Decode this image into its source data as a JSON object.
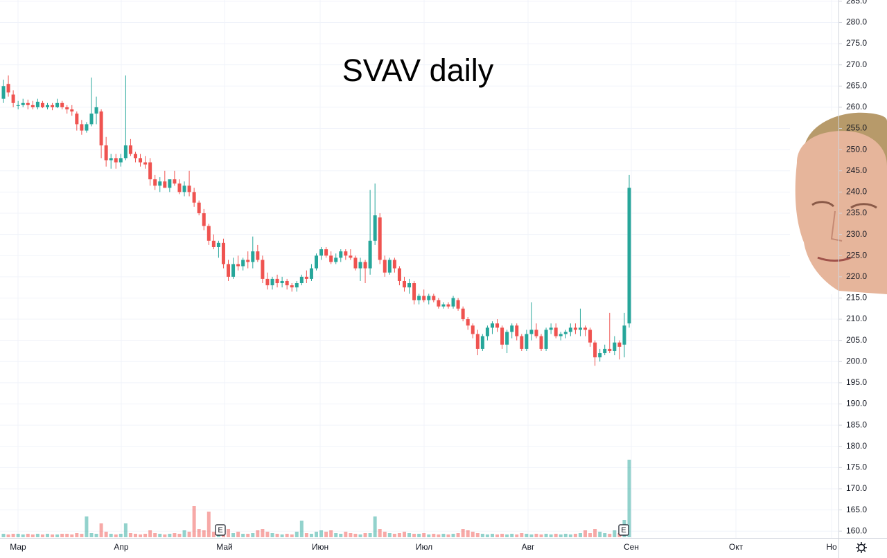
{
  "chart_data": {
    "type": "candlestick",
    "title": "SVAV daily",
    "months": [
      "Мар",
      "Апр",
      "Май",
      "Июн",
      "Июл",
      "Авг",
      "Сен",
      "Окт",
      "Но"
    ],
    "events": [
      {
        "label": "E"
      },
      {
        "label": "E"
      }
    ],
    "up_color": "#26a69a",
    "down_color": "#ef5350",
    "grid": true,
    "ylim": [
      158.4,
      285.3
    ],
    "yticks": [
      {
        "value": 160,
        "label": "160.0"
      },
      {
        "value": 165,
        "label": "165.0"
      },
      {
        "value": 170,
        "label": "170.0"
      },
      {
        "value": 175,
        "label": "175.0"
      },
      {
        "value": 180,
        "label": "180.0"
      },
      {
        "value": 185,
        "label": "185.0"
      },
      {
        "value": 190,
        "label": "190.0"
      },
      {
        "value": 195,
        "label": "195.0"
      },
      {
        "value": 200,
        "label": "200.0"
      },
      {
        "value": 205,
        "label": "205.0"
      },
      {
        "value": 210,
        "label": "210.0"
      },
      {
        "value": 215,
        "label": "215.0"
      },
      {
        "value": 220,
        "label": "220.0"
      },
      {
        "value": 225,
        "label": "225.0"
      },
      {
        "value": 230,
        "label": "230.0"
      },
      {
        "value": 235,
        "label": "235.0"
      },
      {
        "value": 240,
        "label": "240.0"
      },
      {
        "value": 245,
        "label": "245.0"
      },
      {
        "value": 250,
        "label": "250.0"
      },
      {
        "value": 255,
        "label": "255.0"
      },
      {
        "value": 260,
        "label": "260.0"
      },
      {
        "value": 265,
        "label": "265.0"
      },
      {
        "value": 270,
        "label": "270.0"
      },
      {
        "value": 275,
        "label": "275.0"
      },
      {
        "value": 280,
        "label": "280.0"
      },
      {
        "value": 285,
        "label": "285.0"
      }
    ],
    "candles": [
      [
        262,
        266.5,
        261,
        265
      ],
      [
        265.5,
        267.5,
        262.5,
        263.5
      ],
      [
        263,
        264,
        260,
        261
      ],
      [
        260.5,
        261.5,
        259.5,
        260.5
      ],
      [
        260.5,
        262,
        260,
        261
      ],
      [
        261,
        261.8,
        259.5,
        260.5
      ],
      [
        260.5,
        261.5,
        259.5,
        260
      ],
      [
        260,
        262,
        259.5,
        261.3
      ],
      [
        261,
        261.5,
        259.8,
        260
      ],
      [
        260,
        261,
        259.5,
        260.5
      ],
      [
        260.5,
        261,
        259.3,
        260
      ],
      [
        260,
        262,
        259.8,
        261
      ],
      [
        261,
        261.5,
        259.5,
        260
      ],
      [
        260,
        260.5,
        258.5,
        259.5
      ],
      [
        259.5,
        260.5,
        258,
        259
      ],
      [
        258.5,
        259,
        254.5,
        256
      ],
      [
        256,
        257,
        253.5,
        254.5
      ],
      [
        254.5,
        256.5,
        254,
        256
      ],
      [
        256,
        267,
        255.5,
        258.5
      ],
      [
        258.5,
        262.5,
        256,
        260
      ],
      [
        259,
        259.5,
        248,
        251
      ],
      [
        251,
        253,
        246,
        247.5
      ],
      [
        247.5,
        249,
        245.5,
        248
      ],
      [
        248,
        249,
        245.5,
        247
      ],
      [
        247,
        249,
        246,
        248
      ],
      [
        248,
        267.5,
        247.5,
        251
      ],
      [
        251,
        252.5,
        248.5,
        249
      ],
      [
        249,
        249.5,
        247,
        248
      ],
      [
        248,
        249,
        246,
        247
      ],
      [
        247,
        248.5,
        245.5,
        246.5
      ],
      [
        247,
        248,
        241.5,
        243
      ],
      [
        243,
        244,
        240.5,
        241.5
      ],
      [
        241.5,
        243.5,
        240,
        242.5
      ],
      [
        242.5,
        245,
        241,
        241
      ],
      [
        241,
        243,
        240,
        243
      ],
      [
        243,
        245,
        241.5,
        242
      ],
      [
        242,
        243,
        239.5,
        240
      ],
      [
        240,
        242.5,
        239,
        241.5
      ],
      [
        241.5,
        245,
        239,
        240
      ],
      [
        240,
        241,
        236.5,
        237.5
      ],
      [
        237.5,
        238,
        234.5,
        235
      ],
      [
        235,
        236,
        231,
        232
      ],
      [
        232,
        232.5,
        227.5,
        228.5
      ],
      [
        228.5,
        230,
        226.5,
        227
      ],
      [
        227,
        228.5,
        224.5,
        228
      ],
      [
        228,
        229,
        222,
        223
      ],
      [
        223,
        224,
        219,
        220
      ],
      [
        220,
        224.5,
        219.5,
        223
      ],
      [
        223,
        225,
        221.5,
        222.5
      ],
      [
        222.5,
        224.5,
        221.5,
        224
      ],
      [
        224,
        226,
        222,
        223.5
      ],
      [
        223.5,
        229.5,
        222,
        226
      ],
      [
        226,
        227.5,
        223.5,
        224
      ],
      [
        224,
        225,
        218.5,
        219.5
      ],
      [
        219.5,
        221,
        217,
        218
      ],
      [
        218,
        220,
        217,
        219.5
      ],
      [
        219.5,
        220.5,
        217.5,
        218.5
      ],
      [
        218.5,
        220,
        217.5,
        219
      ],
      [
        219,
        219.5,
        217,
        218
      ],
      [
        218,
        218.5,
        216.5,
        217.5
      ],
      [
        217.5,
        219,
        216.5,
        218.5
      ],
      [
        218.5,
        220.5,
        218,
        220
      ],
      [
        220,
        221.5,
        218.5,
        219.5
      ],
      [
        219.5,
        223,
        219,
        222
      ],
      [
        222,
        225.5,
        221.5,
        225
      ],
      [
        225,
        227,
        224,
        226.5
      ],
      [
        226.5,
        227,
        224.5,
        225
      ],
      [
        225,
        226,
        223,
        223.5
      ],
      [
        223.5,
        225.5,
        223,
        224.5
      ],
      [
        224.5,
        226.5,
        223.5,
        226
      ],
      [
        226,
        226.5,
        224,
        225
      ],
      [
        225,
        226.5,
        224,
        224.5
      ],
      [
        224.5,
        225,
        221.5,
        222
      ],
      [
        222,
        224.5,
        219,
        223.5
      ],
      [
        223.5,
        224,
        218.5,
        222
      ],
      [
        222,
        240.5,
        220.5,
        228.5
      ],
      [
        228.5,
        242,
        227.5,
        234.5
      ],
      [
        234,
        235,
        223,
        224
      ],
      [
        224,
        225,
        220,
        221
      ],
      [
        221,
        224.5,
        220.5,
        224
      ],
      [
        224,
        224.5,
        221,
        222
      ],
      [
        222,
        222.5,
        218,
        219
      ],
      [
        219,
        220,
        216.5,
        217.5
      ],
      [
        217.5,
        219.5,
        216,
        218.5
      ],
      [
        218.5,
        219,
        213.5,
        214.5
      ],
      [
        214.5,
        216,
        213.5,
        215.5
      ],
      [
        215.5,
        217,
        214,
        214.5
      ],
      [
        214.5,
        216,
        213.5,
        215.5
      ],
      [
        215.5,
        216,
        214,
        214.5
      ],
      [
        214.5,
        215,
        212.5,
        213
      ],
      [
        213,
        214,
        212.5,
        213.5
      ],
      [
        213.5,
        214,
        212.5,
        213
      ],
      [
        213,
        215.5,
        212.5,
        215
      ],
      [
        214.5,
        215,
        212,
        212.5
      ],
      [
        212.5,
        213,
        209.5,
        210
      ],
      [
        210,
        210.5,
        207.5,
        208.5
      ],
      [
        208.5,
        209,
        205.5,
        206.5
      ],
      [
        206.5,
        207.5,
        201.5,
        203
      ],
      [
        203,
        206.5,
        202.5,
        206
      ],
      [
        206,
        208.5,
        205,
        208
      ],
      [
        208,
        209.5,
        206.5,
        209
      ],
      [
        209,
        210,
        207,
        208
      ],
      [
        208,
        208.5,
        203,
        204
      ],
      [
        204,
        207.5,
        202,
        207
      ],
      [
        207,
        209,
        205.5,
        208.5
      ],
      [
        208.5,
        209,
        205,
        206
      ],
      [
        206,
        206.5,
        202.5,
        203
      ],
      [
        203,
        207.5,
        202.5,
        206.5
      ],
      [
        206.5,
        214,
        205,
        207.5
      ],
      [
        207.5,
        209,
        205.5,
        206
      ],
      [
        206,
        206.5,
        202.5,
        203
      ],
      [
        203,
        208,
        202.5,
        207.5
      ],
      [
        207.5,
        209,
        206.5,
        208
      ],
      [
        208,
        209,
        205.5,
        206
      ],
      [
        206,
        207,
        205,
        206.5
      ],
      [
        206.5,
        207.5,
        205.5,
        207
      ],
      [
        207,
        209,
        206,
        208
      ],
      [
        208,
        209,
        206.5,
        207.5
      ],
      [
        207.5,
        212.5,
        206,
        208
      ],
      [
        208,
        208.5,
        206,
        207.5
      ],
      [
        207.5,
        208,
        203.5,
        204.5
      ],
      [
        204.5,
        205,
        199,
        201
      ],
      [
        201,
        203,
        200,
        202
      ],
      [
        202,
        204,
        201.5,
        203
      ],
      [
        203,
        211.5,
        202,
        202.5
      ],
      [
        202.5,
        206,
        201.5,
        204.5
      ],
      [
        204.5,
        205,
        200.5,
        203.5
      ],
      [
        204,
        211.5,
        201,
        208.5
      ],
      [
        209,
        244,
        208,
        241
      ]
    ],
    "volume": [
      5,
      4,
      5,
      5,
      4,
      5,
      4,
      5,
      4,
      5,
      4,
      4,
      5,
      5,
      4,
      6,
      5,
      30,
      6,
      5,
      20,
      8,
      5,
      4,
      5,
      20,
      6,
      5,
      4,
      5,
      10,
      6,
      5,
      4,
      5,
      6,
      5,
      10,
      8,
      45,
      12,
      10,
      37,
      8,
      6,
      5,
      12,
      6,
      8,
      5,
      5,
      6,
      10,
      12,
      8,
      6,
      5,
      4,
      5,
      4,
      8,
      24,
      6,
      5,
      8,
      10,
      8,
      10,
      6,
      5,
      8,
      6,
      5,
      4,
      6,
      6,
      30,
      12,
      8,
      6,
      5,
      6,
      8,
      6,
      5,
      5,
      6,
      4,
      5,
      4,
      5,
      4,
      5,
      6,
      12,
      10,
      8,
      6,
      5,
      4,
      5,
      4,
      5,
      4,
      5,
      4,
      6,
      5,
      4,
      5,
      4,
      5,
      4,
      5,
      4,
      5,
      4,
      5,
      6,
      10,
      6,
      12,
      8,
      6,
      5,
      10,
      6,
      25,
      112
    ]
  }
}
